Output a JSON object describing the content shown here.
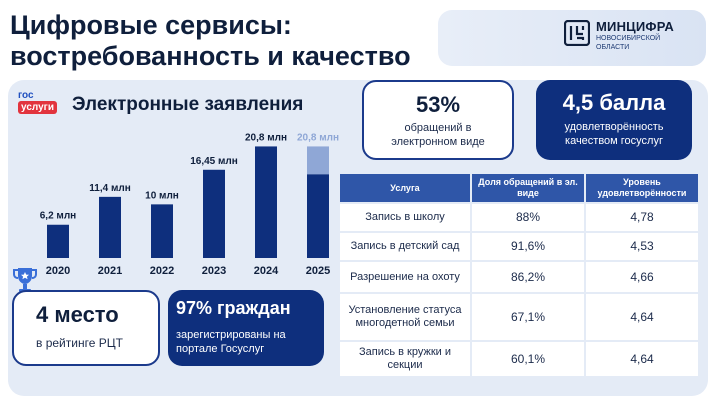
{
  "header": {
    "title_line1": "Цифровые сервисы:",
    "title_line2": "востребованность и качество"
  },
  "logo": {
    "name": "МИНЦИФРА",
    "subtitle": "НОВОСИБИРСКОЙ ОБЛАСТИ"
  },
  "badge": {
    "line1": "гос",
    "line2": "услуги"
  },
  "section": {
    "title": "Электронные заявления"
  },
  "chart_data": {
    "type": "bar",
    "categories": [
      "2020",
      "2021",
      "2022",
      "2023",
      "2024",
      "2025"
    ],
    "values": [
      6.2,
      11.4,
      10,
      16.45,
      20.8,
      20.8
    ],
    "labels": [
      "6,2 млн",
      "11,4 млн",
      "10 млн",
      "16,45 млн",
      "20,8 млн",
      "20,8 млн"
    ],
    "partial_last": 15.6,
    "unit": "млн",
    "ylim": [
      0,
      22
    ],
    "colors": {
      "bar": "#0e2f7d",
      "last_label": "#8fa7d6",
      "last_top": "#8fa7d6"
    }
  },
  "stats": {
    "share": {
      "value": "53%",
      "text": "обращений в электронном виде"
    },
    "rating": {
      "value": "4,5 балла",
      "text": "удовлетворённость качеством госуслуг"
    },
    "rank": {
      "value": "4 место",
      "text": "в рейтинге РЦТ"
    },
    "citizens": {
      "value": "97% граждан",
      "text": "зарегистрированы на портале Госуслуг"
    }
  },
  "table": {
    "headers": [
      "Услуга",
      "Доля обращений в эл. виде",
      "Уровень удовлетворённости"
    ],
    "rows": [
      [
        "Запись в школу",
        "88%",
        "4,78"
      ],
      [
        "Запись в детский сад",
        "91,6%",
        "4,53"
      ],
      [
        "Разрешение на охоту",
        "86,2%",
        "4,66"
      ],
      [
        "Установление статуса многодетной семьи",
        "67,1%",
        "4,64"
      ],
      [
        "Запись в кружки и секции",
        "60,1%",
        "4,64"
      ]
    ]
  }
}
